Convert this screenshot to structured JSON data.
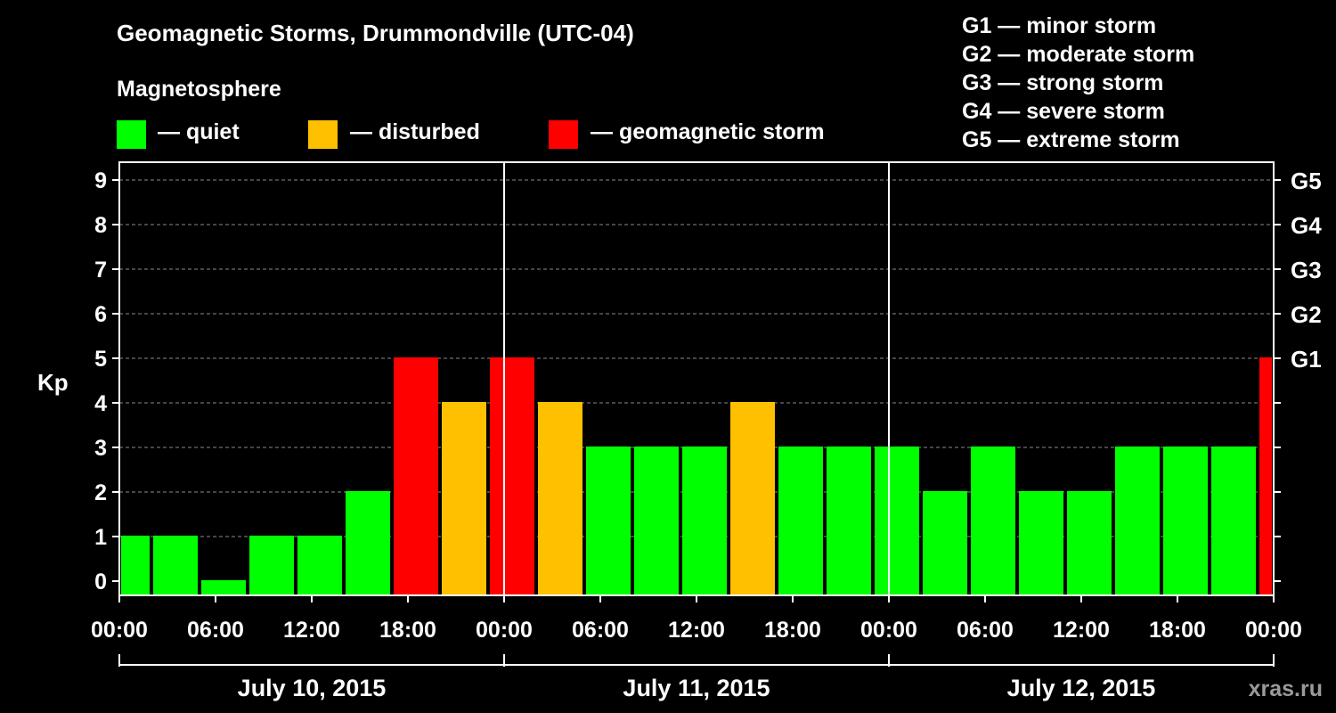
{
  "chart_data": {
    "type": "bar",
    "title": "Geomagnetic Storms, Drummondville (UTC-04)",
    "legend": {
      "heading": "Magnetosphere",
      "items": [
        {
          "label": "— quiet",
          "color": "#00ff00"
        },
        {
          "label": "— disturbed",
          "color": "#ffc000"
        },
        {
          "label": "— geomagnetic storm",
          "color": "#ff0000"
        }
      ]
    },
    "storm_scale": [
      "G1 — minor storm",
      "G2 — moderate storm",
      "G3 — strong storm",
      "G4 — severe storm",
      "G5 — extreme storm"
    ],
    "ylabel": "Kp",
    "ylim": [
      0,
      9
    ],
    "yticks": [
      "0",
      "1",
      "2",
      "3",
      "4",
      "5",
      "6",
      "7",
      "8",
      "9"
    ],
    "right_ticks": [
      {
        "kp": 5,
        "label": "G1"
      },
      {
        "kp": 6,
        "label": "G2"
      },
      {
        "kp": 7,
        "label": "G3"
      },
      {
        "kp": 8,
        "label": "G4"
      },
      {
        "kp": 9,
        "label": "G5"
      }
    ],
    "xlim_hours": [
      0,
      72
    ],
    "xticks": [
      {
        "hour": 0,
        "label": "00:00"
      },
      {
        "hour": 6,
        "label": "06:00"
      },
      {
        "hour": 12,
        "label": "12:00"
      },
      {
        "hour": 18,
        "label": "18:00"
      },
      {
        "hour": 24,
        "label": "00:00"
      },
      {
        "hour": 30,
        "label": "06:00"
      },
      {
        "hour": 36,
        "label": "12:00"
      },
      {
        "hour": 42,
        "label": "18:00"
      },
      {
        "hour": 48,
        "label": "00:00"
      },
      {
        "hour": 54,
        "label": "06:00"
      },
      {
        "hour": 60,
        "label": "12:00"
      },
      {
        "hour": 66,
        "label": "18:00"
      },
      {
        "hour": 72,
        "label": "00:00"
      }
    ],
    "days": [
      {
        "label": "July 10, 2015",
        "start": 0,
        "end": 24
      },
      {
        "label": "July 11, 2015",
        "start": 24,
        "end": 48
      },
      {
        "label": "July 12, 2015",
        "start": 48,
        "end": 72
      }
    ],
    "bars": [
      {
        "start": 0,
        "end": 2,
        "kp": 1,
        "level": "quiet"
      },
      {
        "start": 2,
        "end": 5,
        "kp": 1,
        "level": "quiet"
      },
      {
        "start": 5,
        "end": 8,
        "kp": 0,
        "level": "quiet"
      },
      {
        "start": 8,
        "end": 11,
        "kp": 1,
        "level": "quiet"
      },
      {
        "start": 11,
        "end": 14,
        "kp": 1,
        "level": "quiet"
      },
      {
        "start": 14,
        "end": 17,
        "kp": 2,
        "level": "quiet"
      },
      {
        "start": 17,
        "end": 20,
        "kp": 5,
        "level": "storm"
      },
      {
        "start": 20,
        "end": 23,
        "kp": 4,
        "level": "disturbed"
      },
      {
        "start": 23,
        "end": 26,
        "kp": 5,
        "level": "storm"
      },
      {
        "start": 26,
        "end": 29,
        "kp": 4,
        "level": "disturbed"
      },
      {
        "start": 29,
        "end": 32,
        "kp": 3,
        "level": "quiet"
      },
      {
        "start": 32,
        "end": 35,
        "kp": 3,
        "level": "quiet"
      },
      {
        "start": 35,
        "end": 38,
        "kp": 3,
        "level": "quiet"
      },
      {
        "start": 38,
        "end": 41,
        "kp": 4,
        "level": "disturbed"
      },
      {
        "start": 41,
        "end": 44,
        "kp": 3,
        "level": "quiet"
      },
      {
        "start": 44,
        "end": 47,
        "kp": 3,
        "level": "quiet"
      },
      {
        "start": 47,
        "end": 50,
        "kp": 3,
        "level": "quiet"
      },
      {
        "start": 50,
        "end": 53,
        "kp": 2,
        "level": "quiet"
      },
      {
        "start": 53,
        "end": 56,
        "kp": 3,
        "level": "quiet"
      },
      {
        "start": 56,
        "end": 59,
        "kp": 2,
        "level": "quiet"
      },
      {
        "start": 59,
        "end": 62,
        "kp": 2,
        "level": "quiet"
      },
      {
        "start": 62,
        "end": 65,
        "kp": 3,
        "level": "quiet"
      },
      {
        "start": 65,
        "end": 68,
        "kp": 3,
        "level": "quiet"
      },
      {
        "start": 68,
        "end": 71,
        "kp": 3,
        "level": "quiet"
      },
      {
        "start": 71,
        "end": 72,
        "kp": 5,
        "level": "storm"
      }
    ],
    "colors": {
      "quiet": "#00ff00",
      "disturbed": "#ffc000",
      "storm": "#ff0000"
    },
    "watermark": "xras.ru"
  }
}
